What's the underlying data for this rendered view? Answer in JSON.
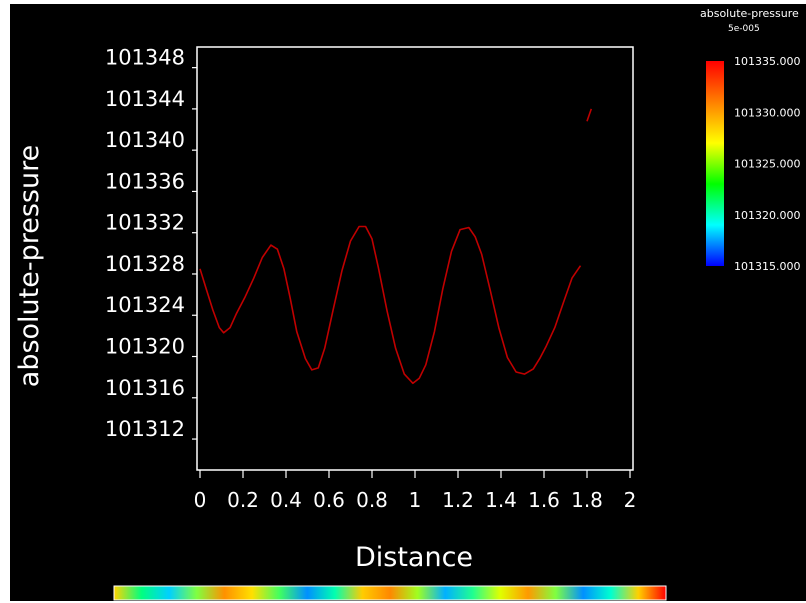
{
  "chart_data": {
    "type": "line",
    "xlabel": "Distance",
    "ylabel": "absolute-pressure",
    "xlim": [
      0,
      2
    ],
    "ylim": [
      101309,
      101350
    ],
    "x_ticks": [
      "0",
      "0.2",
      "0.4",
      "0.6",
      "0.8",
      "1",
      "1.2",
      "1.4",
      "1.6",
      "1.8",
      "2"
    ],
    "y_ticks": [
      "101312",
      "101316",
      "101320",
      "101324",
      "101328",
      "101332",
      "101336",
      "101340",
      "101344",
      "101348"
    ],
    "grid": false,
    "series": [
      {
        "color": "#c00000",
        "x": [
          0,
          0.03,
          0.06,
          0.09,
          0.11,
          0.14,
          0.17,
          0.21,
          0.25,
          0.29,
          0.33,
          0.36,
          0.39,
          0.42,
          0.45,
          0.49,
          0.52,
          0.55,
          0.58,
          0.62,
          0.66,
          0.7,
          0.74,
          0.77,
          0.8,
          0.83,
          0.87,
          0.91,
          0.95,
          0.99,
          1.02,
          1.05,
          1.09,
          1.13,
          1.17,
          1.21,
          1.25,
          1.28,
          1.31,
          1.35,
          1.39,
          1.43,
          1.47,
          1.51,
          1.55,
          1.58,
          1.61,
          1.65,
          1.69,
          1.73,
          1.77
        ],
        "y": [
          101328.5,
          101326.5,
          101324.5,
          101322.8,
          101322.3,
          101322.8,
          101324.2,
          101325.8,
          101327.6,
          101329.6,
          101330.8,
          101330.4,
          101328.5,
          101325.6,
          101322.4,
          101319.8,
          101318.7,
          101318.9,
          101320.8,
          101324.6,
          101328.3,
          101331.2,
          101332.6,
          101332.6,
          101331.4,
          101328.6,
          101324.4,
          101320.8,
          101318.3,
          101317.4,
          101317.9,
          101319.2,
          101322.4,
          101326.6,
          101330.2,
          101332.3,
          101332.5,
          101331.6,
          101329.9,
          101326.4,
          101322.8,
          101319.9,
          101318.5,
          101318.3,
          101318.8,
          101319.8,
          101321.0,
          101322.8,
          101325.2,
          101327.6,
          101328.8
        ]
      },
      {
        "color": "#c00000",
        "x": [
          1.8,
          1.82
        ],
        "y": [
          101342.8,
          101344.0
        ]
      }
    ],
    "colorbar": {
      "title": "absolute-pressure",
      "subtitle": "5e-005",
      "labels": [
        "101335.000",
        "101330.000",
        "101325.000",
        "101320.000",
        "101315.000"
      ],
      "range": [
        101315,
        101335
      ],
      "colors": [
        "#ff0000",
        "#ff8000",
        "#ffff00",
        "#00ff00",
        "#00ffff",
        "#0000ff"
      ]
    }
  },
  "bottom_strip": {
    "colors": [
      "#ffd400",
      "#00ff80",
      "#00d0ff",
      "#80ff40",
      "#ff9000",
      "#ffe000",
      "#40ff60",
      "#0090ff",
      "#00ffb0",
      "#ffcc00",
      "#ff8800",
      "#a0ff20",
      "#00b0ff",
      "#20ff90",
      "#e0ff00",
      "#ff9900",
      "#80ff40",
      "#0090ff",
      "#00ffd0",
      "#ffd000",
      "#ff0000"
    ]
  }
}
